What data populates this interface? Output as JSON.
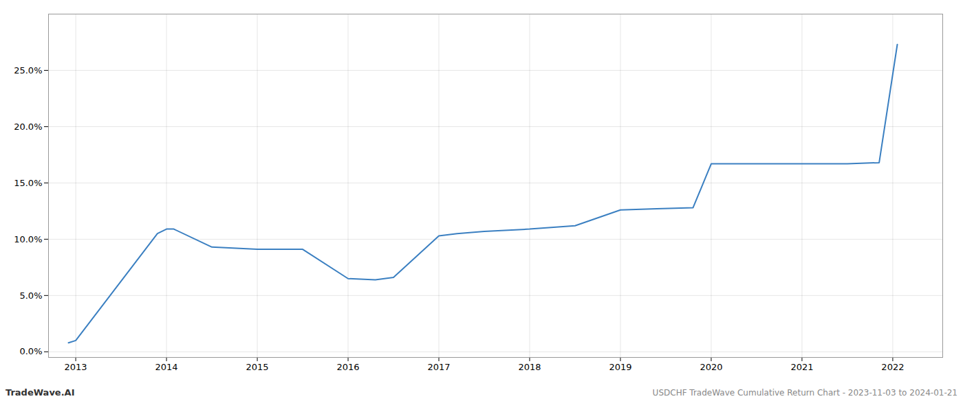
{
  "chart_data": {
    "type": "line",
    "x": [
      2012.92,
      2013.0,
      2013.9,
      2014.0,
      2014.08,
      2014.5,
      2015.0,
      2015.5,
      2016.0,
      2016.3,
      2016.5,
      2017.0,
      2017.2,
      2017.5,
      2018.0,
      2018.5,
      2019.0,
      2019.4,
      2019.8,
      2020.0,
      2020.5,
      2021.0,
      2021.5,
      2021.85,
      2022.05
    ],
    "values": [
      0.008,
      0.01,
      0.105,
      0.109,
      0.109,
      0.093,
      0.091,
      0.091,
      0.065,
      0.064,
      0.066,
      0.103,
      0.105,
      0.107,
      0.109,
      0.112,
      0.126,
      0.127,
      0.128,
      0.167,
      0.167,
      0.167,
      0.167,
      0.168,
      0.273
    ],
    "color": "#3a7fc1",
    "xlim": [
      2012.7,
      2022.55
    ],
    "xticks": [
      2013,
      2014,
      2015,
      2016,
      2017,
      2018,
      2019,
      2020,
      2021,
      2022
    ],
    "ylim": [
      -0.005,
      0.3
    ],
    "yticks": [
      {
        "value": 0.0,
        "label": "0.0%"
      },
      {
        "value": 0.05,
        "label": "5.0%"
      },
      {
        "value": 0.1,
        "label": "10.0%"
      },
      {
        "value": 0.15,
        "label": "15.0%"
      },
      {
        "value": 0.2,
        "label": "20.0%"
      },
      {
        "value": 0.25,
        "label": "25.0%"
      }
    ],
    "grid": true,
    "annotations": [
      "TradeWave.AI",
      "USDCHF TradeWave Cumulative Return Chart - 2023-11-03 to 2024-01-21"
    ]
  }
}
